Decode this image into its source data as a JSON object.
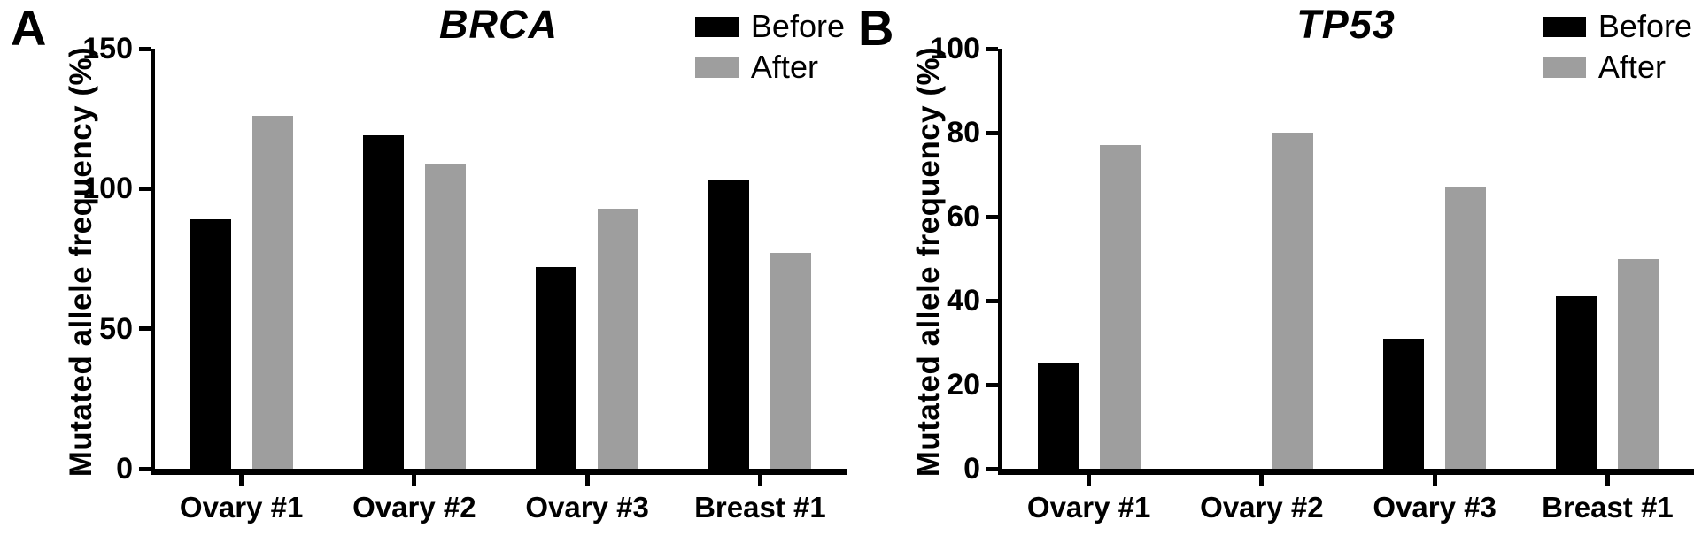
{
  "figure": {
    "background": "#ffffff",
    "bar_colors": {
      "before": "#000000",
      "after": "#9e9e9e"
    }
  },
  "chart_data": [
    {
      "type": "bar",
      "panel_letter": "A",
      "title": "BRCA",
      "xlabel": "",
      "ylabel": "Mutated allele frequency (%)",
      "categories": [
        "Ovary #1",
        "Ovary #2",
        "Ovary #3",
        "Breast #1"
      ],
      "series": [
        {
          "name": "Before",
          "color": "#000000",
          "values": [
            89,
            119,
            72,
            103
          ]
        },
        {
          "name": "After",
          "color": "#9e9e9e",
          "values": [
            126,
            109,
            93,
            77
          ]
        }
      ],
      "ylim": [
        0,
        150
      ],
      "yticks": [
        0,
        50,
        100,
        150
      ],
      "grid": false,
      "legend_position": "top-right"
    },
    {
      "type": "bar",
      "panel_letter": "B",
      "title": "TP53",
      "xlabel": "",
      "ylabel": "Mutated allele frequency (%)",
      "categories": [
        "Ovary #1",
        "Ovary #2",
        "Ovary #3",
        "Breast #1"
      ],
      "series": [
        {
          "name": "Before",
          "color": "#000000",
          "values": [
            25,
            0,
            31,
            41
          ]
        },
        {
          "name": "After",
          "color": "#9e9e9e",
          "values": [
            77,
            80,
            67,
            50
          ]
        }
      ],
      "ylim": [
        0,
        100
      ],
      "yticks": [
        0,
        20,
        40,
        60,
        80,
        100
      ],
      "grid": false,
      "legend_position": "top-right"
    }
  ]
}
